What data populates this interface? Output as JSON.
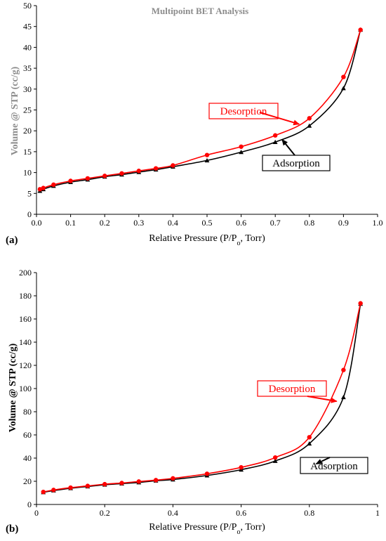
{
  "chart_data": [
    {
      "type": "scatter",
      "panel_label": "(a)",
      "title": "Multipoint BET Analysis",
      "xlabel_pre": "Relative Pressure (P/P",
      "xlabel_sub": "o",
      "xlabel_post": ", Torr)",
      "ylabel": "Volume @ STP (cc/g)",
      "xlim": [
        0,
        1
      ],
      "ylim": [
        0,
        50
      ],
      "x_ticks": [
        "0.0",
        "0.1",
        "0.2",
        "0.3",
        "0.4",
        "0.5",
        "0.6",
        "0.7",
        "0.8",
        "0.9",
        "1.0"
      ],
      "y_ticks": [
        "0",
        "5",
        "10",
        "15",
        "20",
        "25",
        "30",
        "35",
        "40",
        "45",
        "50"
      ],
      "grid": false,
      "series": [
        {
          "name": "Adsorption",
          "color": "#000000",
          "marker": "triangle",
          "x": [
            0.01,
            0.02,
            0.05,
            0.1,
            0.15,
            0.2,
            0.25,
            0.3,
            0.35,
            0.4,
            0.5,
            0.6,
            0.7,
            0.8,
            0.9,
            0.95
          ],
          "y": [
            5.6,
            6.0,
            6.8,
            7.7,
            8.3,
            9.0,
            9.5,
            10.1,
            10.7,
            11.4,
            12.9,
            14.9,
            17.3,
            21.2,
            30.2,
            44.2
          ]
        },
        {
          "name": "Desorption",
          "color": "#ff0000",
          "marker": "circle",
          "x": [
            0.01,
            0.02,
            0.05,
            0.1,
            0.15,
            0.2,
            0.25,
            0.3,
            0.35,
            0.4,
            0.5,
            0.6,
            0.7,
            0.8,
            0.9,
            0.95
          ],
          "y": [
            6.0,
            6.3,
            7.1,
            8.0,
            8.6,
            9.2,
            9.8,
            10.4,
            11.0,
            11.7,
            14.2,
            16.2,
            18.9,
            23.0,
            32.9,
            44.2
          ]
        }
      ],
      "annotations": [
        {
          "text": "Desorption",
          "color": "#ff0000",
          "arrow_to": [
            0.77,
            21.6
          ]
        },
        {
          "text": "Adsorption",
          "color": "#000000",
          "arrow_to": [
            0.72,
            17.9
          ]
        }
      ]
    },
    {
      "type": "scatter",
      "panel_label": "(b)",
      "xlabel_pre": "Relative Pressure (P/P",
      "xlabel_sub": "o",
      "xlabel_post": ", Torr)",
      "ylabel": "Volume @ STP (cc/g)",
      "xlim": [
        0,
        1
      ],
      "ylim": [
        0,
        200
      ],
      "x_ticks": [
        "0",
        "0.2",
        "0.4",
        "0.6",
        "0.8",
        "1"
      ],
      "y_ticks": [
        "0",
        "20",
        "40",
        "60",
        "80",
        "100",
        "120",
        "140",
        "160",
        "180",
        "200"
      ],
      "grid": false,
      "series": [
        {
          "name": "Adsorption",
          "color": "#000000",
          "marker": "triangle",
          "x": [
            0.02,
            0.05,
            0.1,
            0.15,
            0.2,
            0.25,
            0.3,
            0.35,
            0.4,
            0.5,
            0.6,
            0.7,
            0.8,
            0.9,
            0.95
          ],
          "y": [
            10.5,
            12.0,
            14.0,
            15.5,
            17.0,
            18.0,
            19.0,
            20.5,
            21.5,
            25.0,
            30.0,
            37.5,
            52.5,
            92.5,
            173.0
          ]
        },
        {
          "name": "Desorption",
          "color": "#ff0000",
          "marker": "circle",
          "x": [
            0.02,
            0.05,
            0.1,
            0.15,
            0.2,
            0.25,
            0.3,
            0.35,
            0.4,
            0.5,
            0.6,
            0.7,
            0.8,
            0.9,
            0.95
          ],
          "y": [
            10.8,
            12.5,
            14.5,
            16.0,
            17.5,
            18.5,
            19.8,
            21.0,
            22.5,
            26.5,
            32.0,
            40.5,
            58.0,
            116.0,
            173.5
          ]
        }
      ],
      "annotations": [
        {
          "text": "Desorption",
          "color": "#ff0000",
          "arrow_to": [
            0.88,
            89.0
          ]
        },
        {
          "text": "Adsorption",
          "color": "#000000",
          "arrow_to": [
            0.82,
            35.0
          ]
        }
      ]
    }
  ]
}
